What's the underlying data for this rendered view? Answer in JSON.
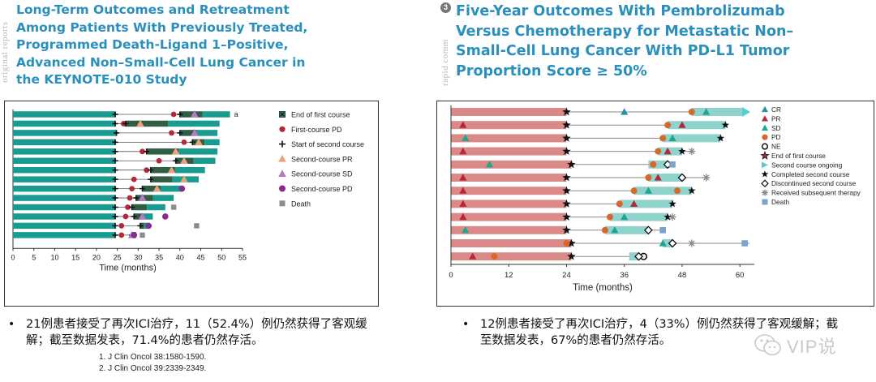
{
  "left": {
    "side_label": "original reports",
    "title": "Long-Term Outcomes and Retreatment Among Patients With Previously Treated, Programmed Death-Ligand 1–Positive, Advanced Non–Small-Cell Lung Cancer in the KEYNOTE-010 Study",
    "bullet": "21例患者接受了再次ICI治疗，11（52.4%）例仍然获得了客观缓解；截至数据发表，71.4%的患者仍然存活。",
    "refs": [
      "1.  J Clin Oncol 38:1580-1590.",
      "2.  J Clin Oncol 39:2339-2349."
    ]
  },
  "right": {
    "circle_num": "3",
    "side_label": "rapid comm",
    "title": "Five-Year Outcomes With Pembrolizumab Versus Chemotherapy for Metastatic Non–Small-Cell Lung Cancer With PD-L1 Tumor Proportion Score ≥ 50%",
    "bullet": "12例患者接受了再次ICI治疗，4（33%）例仍然获得了客观缓解；截至数据发表，67%的患者仍然存活。"
  },
  "watermark": "VIP说",
  "colors": {
    "title": "#2b8fbe",
    "teal": "#1a9b8f",
    "dark_green": "#2f5e45",
    "light_teal": "#8fd3cc",
    "salmon": "#d98a86",
    "red": "#b5283a",
    "orange": "#d9662b",
    "violet": "#b57ac6",
    "purple": "#8a2a8e"
  },
  "chart_data": [
    {
      "type": "swimmer",
      "xlabel": "Time (months)",
      "xlim": [
        0,
        55
      ],
      "xticks": [
        0,
        5,
        10,
        15,
        20,
        25,
        30,
        35,
        40,
        45,
        50,
        55
      ],
      "annotation": "a",
      "legend": [
        "End of first course",
        "First-course PD",
        "Start of second course",
        "Second-course PR",
        "Second-course SD",
        "Second-course PD",
        "Death"
      ],
      "rows": [
        {
          "end1": 24.5,
          "start2": 40,
          "end2": 52,
          "pd1": 38.5,
          "pr2": null,
          "sd2": 43.5,
          "pd2": null,
          "death": null
        },
        {
          "end1": 24.5,
          "start2": 27,
          "end2": 49.5,
          "pd1": 26.5,
          "pr2": 30.5,
          "sd2": null,
          "pd2": null,
          "death": null
        },
        {
          "end1": 24.8,
          "start2": 40,
          "end2": 49,
          "pd1": 38,
          "pr2": null,
          "sd2": 43.5,
          "pd2": null,
          "death": null
        },
        {
          "end1": 24.5,
          "start2": 43,
          "end2": 49.5,
          "pd1": 41,
          "pr2": 44.5,
          "sd2": null,
          "pd2": null,
          "death": null
        },
        {
          "end1": 24.5,
          "start2": 32,
          "end2": 49,
          "pd1": 31,
          "pr2": 39,
          "sd2": null,
          "pd2": null,
          "death": null
        },
        {
          "end1": 24.5,
          "start2": 39,
          "end2": 48.5,
          "pd1": 35,
          "pr2": 41,
          "sd2": null,
          "pd2": null,
          "death": null
        },
        {
          "end1": 24.5,
          "start2": 33,
          "end2": 46,
          "pd1": 32,
          "pr2": 38,
          "sd2": null,
          "pd2": null,
          "death": null
        },
        {
          "end1": 24.5,
          "start2": 33,
          "end2": 44.5,
          "pd1": 29,
          "pr2": 41,
          "sd2": null,
          "pd2": null,
          "death": null
        },
        {
          "end1": 24.5,
          "start2": 31,
          "end2": 40.5,
          "pd1": 28.5,
          "pr2": 34.5,
          "sd2": null,
          "pd2": 40.5,
          "death": null
        },
        {
          "end1": 24.5,
          "start2": 29.5,
          "end2": 38.5,
          "pd1": 28,
          "pr2": null,
          "sd2": 31,
          "pd2": null,
          "death": null
        },
        {
          "end1": 24.5,
          "start2": 28.5,
          "end2": 36.5,
          "pd1": 27.5,
          "pr2": null,
          "sd2": null,
          "pd2": null,
          "death": 38.5
        },
        {
          "end1": 24.5,
          "start2": 29,
          "end2": 33.5,
          "pd1": 27,
          "pr2": null,
          "sd2": 31,
          "pd2": 36.5,
          "death": null
        },
        {
          "end1": 24.5,
          "start2": 30.5,
          "end2": 32.5,
          "pd1": 26,
          "pr2": null,
          "sd2": null,
          "pd2": 32.5,
          "death": 44
        },
        {
          "end1": 24.5,
          "start2": 28.5,
          "end2": 29.5,
          "pd1": 26,
          "pr2": null,
          "sd2": 28.5,
          "pd2": 29,
          "death": 31
        }
      ]
    },
    {
      "type": "swimmer",
      "xlabel": "Time (months)",
      "xlim": [
        0,
        63
      ],
      "xticks": [
        0,
        12,
        24,
        36,
        48,
        60
      ],
      "legend": [
        "CR",
        "PR",
        "SD",
        "PD",
        "NE",
        "End of first course",
        "Second course ongoing",
        "Completed second course",
        "Discontinued second course",
        "Received subsequent therapy",
        "Death"
      ],
      "rows": [
        {
          "end1": 24,
          "start2": 50,
          "end2": 62,
          "arrow": true,
          "line_end": 60,
          "first": [
            {
              "m": "CR",
              "x": 36
            }
          ],
          "second": [
            {
              "m": "PD",
              "x": 50
            },
            {
              "m": "SD",
              "x": 53
            }
          ],
          "end_mark": null
        },
        {
          "end1": 24,
          "start2": 45,
          "end2": 57,
          "line_end": 57,
          "first": [
            {
              "m": "PR",
              "x": 2.5
            }
          ],
          "second": [
            {
              "m": "PD",
              "x": 45
            },
            {
              "m": "PR",
              "x": 48
            }
          ],
          "end_mark": "completed"
        },
        {
          "end1": 24,
          "start2": 44,
          "end2": 56,
          "line_end": 56,
          "first": [
            {
              "m": "SD",
              "x": 3
            }
          ],
          "second": [
            {
              "m": "PD",
              "x": 44
            },
            {
              "m": "SD",
              "x": 46
            }
          ],
          "end_mark": "completed"
        },
        {
          "end1": 24,
          "start2": 43,
          "end2": 48,
          "line_end": 50,
          "first": [
            {
              "m": "PR",
              "x": 2.5
            }
          ],
          "second": [
            {
              "m": "PD",
              "x": 43
            },
            {
              "m": "PR",
              "x": 45
            }
          ],
          "end_mark": "completed",
          "subsequent": 50
        },
        {
          "end1": 25,
          "start2": 41,
          "end2": 45,
          "line_end": 45,
          "first": [
            {
              "m": "SD",
              "x": 8
            }
          ],
          "second": [
            {
              "m": "PD",
              "x": 42
            }
          ],
          "end_mark": "discontinued",
          "death": 46
        },
        {
          "end1": 24,
          "start2": 41,
          "end2": 48,
          "line_end": 53,
          "first": [
            {
              "m": "PR",
              "x": 2.5
            }
          ],
          "second": [
            {
              "m": "PD",
              "x": 41
            },
            {
              "m": "PR",
              "x": 43
            }
          ],
          "end_mark": "discontinued",
          "subsequent": 53
        },
        {
          "end1": 24,
          "start2": 38,
          "end2": 50,
          "line_end": 50,
          "first": [
            {
              "m": "PR",
              "x": 2.5
            }
          ],
          "second": [
            {
              "m": "PD",
              "x": 38
            },
            {
              "m": "SD",
              "x": 41
            },
            {
              "m": "PD",
              "x": 47
            }
          ],
          "end_mark": "completed"
        },
        {
          "end1": 24,
          "start2": 35,
          "end2": 46,
          "line_end": 46,
          "first": [
            {
              "m": "PR",
              "x": 2.5
            }
          ],
          "second": [
            {
              "m": "PD",
              "x": 35
            },
            {
              "m": "PR",
              "x": 38
            }
          ],
          "end_mark": "completed"
        },
        {
          "end1": 24,
          "start2": 33,
          "end2": 45,
          "line_end": 46,
          "first": [
            {
              "m": "PR",
              "x": 2.5
            }
          ],
          "second": [
            {
              "m": "PD",
              "x": 33
            },
            {
              "m": "SD",
              "x": 36
            }
          ],
          "end_mark": "completed",
          "subsequent": 46
        },
        {
          "end1": 24,
          "start2": 32,
          "end2": 41,
          "line_end": 44,
          "first": [
            {
              "m": "SD",
              "x": 3
            }
          ],
          "second": [
            {
              "m": "PD",
              "x": 32
            },
            {
              "m": "SD",
              "x": 34
            }
          ],
          "end_mark": "discontinued",
          "death": 44
        },
        {
          "end1": 25,
          "start2": 44,
          "end2": 46,
          "line_end": 62,
          "first": [
            {
              "m": "PD",
              "x": 24
            }
          ],
          "second": [
            {
              "m": "SD",
              "x": 44
            }
          ],
          "end_mark": "discontinued",
          "subsequent": 50,
          "death": 61
        },
        {
          "end1": 25,
          "start2": 37,
          "end2": 39,
          "line_end": 40,
          "first": [
            {
              "m": "PR",
              "x": 4.5
            },
            {
              "m": "PD",
              "x": 9
            }
          ],
          "second": [
            {
              "m": "NE",
              "x": 40
            }
          ],
          "end_mark": "discontinued"
        }
      ]
    }
  ]
}
